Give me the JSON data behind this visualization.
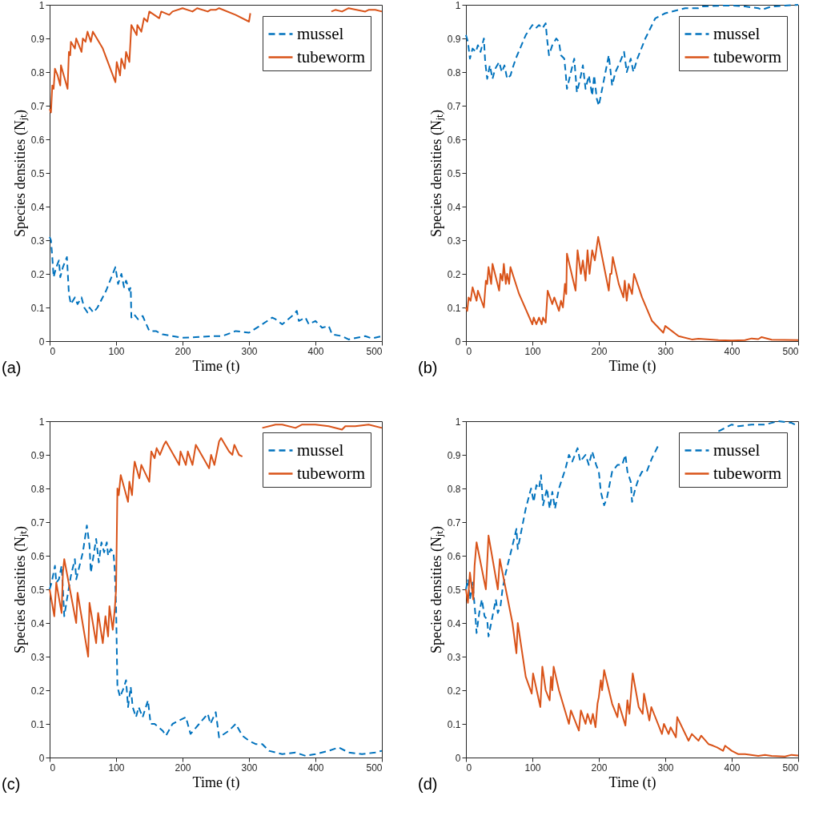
{
  "chart_data": [
    {
      "type": "line",
      "xlabel": "Time (t)",
      "ylabel": "Species densities (Nⱼₜ)",
      "annotations": [
        "(a)"
      ],
      "legend": "top right",
      "xlim": [
        0,
        500
      ],
      "xticks": [
        0,
        100,
        200,
        300,
        400,
        500
      ],
      "ylim": [
        0,
        1
      ],
      "yticks": [
        0,
        0.1,
        0.2,
        0.3,
        0.4,
        0.5,
        0.6,
        0.7,
        0.8,
        0.9,
        1
      ],
      "series": [
        {
          "name": "mussel",
          "color": "#0072bd",
          "line_style": "dashed",
          "x": [
            0,
            2,
            4,
            6,
            10,
            14,
            16,
            20,
            26,
            29,
            32,
            38,
            42,
            48,
            52,
            57,
            60,
            66,
            72,
            85,
            99,
            103,
            108,
            112,
            115,
            120,
            122,
            123,
            127,
            133,
            140,
            150,
            160,
            170,
            185,
            200,
            220,
            245,
            260,
            280,
            300,
            320,
            335,
            340,
            350,
            368,
            372,
            375,
            385,
            390,
            400,
            410,
            420,
            425,
            440,
            450,
            475,
            485,
            500
          ],
          "values": [
            0.31,
            0.3,
            0.25,
            0.19,
            0.22,
            0.24,
            0.19,
            0.22,
            0.25,
            0.14,
            0.11,
            0.13,
            0.11,
            0.13,
            0.1,
            0.085,
            0.1,
            0.085,
            0.1,
            0.15,
            0.22,
            0.17,
            0.2,
            0.16,
            0.18,
            0.15,
            0.16,
            0.07,
            0.08,
            0.065,
            0.075,
            0.03,
            0.03,
            0.02,
            0.015,
            0.01,
            0.012,
            0.015,
            0.015,
            0.03,
            0.025,
            0.05,
            0.07,
            0.065,
            0.05,
            0.08,
            0.09,
            0.06,
            0.07,
            0.05,
            0.06,
            0.04,
            0.045,
            0.02,
            0.015,
            0.005,
            0.015,
            0.008,
            0.015
          ]
        },
        {
          "name": "tubeworm",
          "color": "#d95319",
          "line_style": "solid",
          "x": [
            0,
            2,
            4,
            6,
            8,
            12,
            16,
            17,
            27,
            29,
            31,
            32,
            38,
            40,
            48,
            50,
            54,
            57,
            62,
            65,
            80,
            99,
            101,
            106,
            108,
            113,
            115,
            120,
            123,
            131,
            132,
            138,
            142,
            147,
            150,
            165,
            168,
            180,
            185,
            200,
            215,
            222,
            238,
            242,
            250,
            255,
            280,
            300,
            302,
            360,
            424,
            430,
            440,
            450,
            475,
            480,
            490,
            500
          ],
          "values": [
            0.69,
            0.68,
            0.76,
            0.75,
            0.81,
            0.79,
            0.76,
            0.82,
            0.75,
            0.86,
            0.85,
            0.89,
            0.87,
            0.9,
            0.86,
            0.9,
            0.89,
            0.92,
            0.89,
            0.92,
            0.87,
            0.77,
            0.83,
            0.79,
            0.84,
            0.81,
            0.86,
            0.83,
            0.94,
            0.91,
            0.94,
            0.92,
            0.96,
            0.95,
            0.98,
            0.96,
            0.98,
            0.97,
            0.98,
            0.99,
            0.98,
            0.99,
            0.98,
            0.985,
            0.985,
            0.99,
            0.97,
            0.95,
            0.975,
            null,
            0.98,
            0.985,
            0.98,
            0.99,
            0.98,
            0.985,
            0.985,
            0.98
          ]
        }
      ]
    },
    {
      "type": "line",
      "xlabel": "Time (t)",
      "ylabel": "Species densities (Nⱼₜ)",
      "annotations": [
        "(b)"
      ],
      "legend": "top right",
      "xlim": [
        0,
        500
      ],
      "xticks": [
        0,
        100,
        200,
        300,
        400,
        500
      ],
      "ylim": [
        0,
        1
      ],
      "yticks": [
        0,
        0.1,
        0.2,
        0.3,
        0.4,
        0.5,
        0.6,
        0.7,
        0.8,
        0.9,
        1
      ],
      "series": [
        {
          "name": "mussel",
          "color": "#0072bd",
          "line_style": "dashed",
          "x": [
            0,
            3,
            6,
            10,
            15,
            18,
            22,
            27,
            29,
            32,
            36,
            40,
            44,
            50,
            54,
            58,
            62,
            67,
            70,
            75,
            90,
            100,
            105,
            110,
            115,
            120,
            122,
            125,
            130,
            136,
            140,
            143,
            148,
            150,
            152,
            158,
            163,
            167,
            172,
            176,
            180,
            185,
            190,
            193,
            197,
            200,
            205,
            210,
            215,
            220,
            225,
            232,
            238,
            242,
            248,
            252,
            258,
            270,
            285,
            300,
            330,
            350,
            355,
            380,
            400,
            420,
            440,
            445,
            460,
            500
          ],
          "values": [
            0.91,
            0.89,
            0.84,
            0.87,
            0.86,
            0.88,
            0.86,
            0.9,
            0.83,
            0.78,
            0.82,
            0.78,
            0.81,
            0.83,
            0.8,
            0.82,
            0.78,
            0.79,
            0.81,
            0.84,
            0.91,
            0.94,
            0.93,
            0.94,
            0.93,
            0.945,
            0.9,
            0.85,
            0.88,
            0.9,
            0.89,
            0.85,
            0.84,
            0.8,
            0.75,
            0.8,
            0.84,
            0.74,
            0.78,
            0.82,
            0.75,
            0.79,
            0.73,
            0.79,
            0.72,
            0.7,
            0.75,
            0.8,
            0.85,
            0.76,
            0.8,
            0.83,
            0.86,
            0.8,
            0.84,
            0.8,
            0.84,
            0.9,
            0.96,
            0.975,
            0.99,
            0.99,
            0.995,
            0.997,
            0.998,
            0.995,
            0.99,
            0.985,
            0.995,
            1.0
          ]
        },
        {
          "name": "tubeworm",
          "color": "#d95319",
          "line_style": "solid",
          "x": [
            0,
            2,
            4,
            7,
            10,
            16,
            18,
            27,
            30,
            32,
            34,
            38,
            40,
            50,
            52,
            55,
            57,
            60,
            62,
            65,
            67,
            80,
            100,
            102,
            106,
            110,
            114,
            116,
            120,
            123,
            130,
            133,
            140,
            143,
            146,
            149,
            151,
            152,
            165,
            168,
            173,
            176,
            180,
            183,
            186,
            190,
            194,
            199,
            215,
            217,
            219,
            221,
            230,
            237,
            239,
            242,
            245,
            250,
            253,
            265,
            280,
            297,
            300,
            320,
            340,
            350,
            380,
            400,
            420,
            430,
            440,
            445,
            460,
            500
          ],
          "values": [
            0.1,
            0.09,
            0.13,
            0.12,
            0.16,
            0.12,
            0.15,
            0.1,
            0.18,
            0.17,
            0.22,
            0.17,
            0.23,
            0.15,
            0.2,
            0.18,
            0.23,
            0.17,
            0.2,
            0.17,
            0.22,
            0.14,
            0.05,
            0.07,
            0.05,
            0.07,
            0.05,
            0.07,
            0.055,
            0.15,
            0.11,
            0.13,
            0.09,
            0.12,
            0.1,
            0.17,
            0.14,
            0.26,
            0.15,
            0.27,
            0.2,
            0.24,
            0.18,
            0.27,
            0.2,
            0.27,
            0.24,
            0.31,
            0.15,
            0.2,
            0.2,
            0.25,
            0.17,
            0.13,
            0.18,
            0.12,
            0.17,
            0.14,
            0.2,
            0.13,
            0.06,
            0.025,
            0.045,
            0.015,
            0.005,
            0.007,
            0.003,
            0.002,
            0.003,
            0.008,
            0.006,
            0.012,
            0.004,
            0.003
          ]
        }
      ]
    },
    {
      "type": "line",
      "xlabel": "Time (t)",
      "ylabel": "Species densities (Nⱼₜ)",
      "annotations": [
        "(c)"
      ],
      "legend": "top right",
      "xlim": [
        0,
        500
      ],
      "xticks": [
        0,
        100,
        200,
        300,
        400,
        500
      ],
      "ylim": [
        0,
        1
      ],
      "yticks": [
        0,
        0.1,
        0.2,
        0.3,
        0.4,
        0.5,
        0.6,
        0.7,
        0.8,
        0.9,
        1
      ],
      "series": [
        {
          "name": "mussel",
          "color": "#0072bd",
          "line_style": "dashed",
          "x": [
            0,
            3,
            6,
            8,
            10,
            14,
            18,
            20,
            22,
            26,
            32,
            38,
            40,
            45,
            50,
            56,
            60,
            62,
            66,
            70,
            74,
            78,
            82,
            86,
            88,
            92,
            96,
            98,
            100,
            102,
            106,
            112,
            115,
            118,
            122,
            125,
            130,
            134,
            140,
            148,
            152,
            158,
            170,
            175,
            185,
            195,
            205,
            212,
            225,
            238,
            242,
            250,
            255,
            270,
            280,
            290,
            300,
            310,
            320,
            330,
            350,
            370,
            385,
            400,
            420,
            435,
            450,
            470,
            490,
            500
          ],
          "values": [
            0.5,
            0.52,
            0.55,
            0.57,
            0.52,
            0.53,
            0.57,
            0.5,
            0.42,
            0.47,
            0.54,
            0.59,
            0.53,
            0.57,
            0.61,
            0.69,
            0.63,
            0.55,
            0.6,
            0.65,
            0.58,
            0.64,
            0.61,
            0.64,
            0.6,
            0.62,
            0.61,
            0.56,
            0.45,
            0.21,
            0.18,
            0.21,
            0.23,
            0.15,
            0.21,
            0.15,
            0.12,
            0.15,
            0.12,
            0.17,
            0.1,
            0.1,
            0.08,
            0.065,
            0.1,
            0.11,
            0.12,
            0.07,
            0.1,
            0.13,
            0.1,
            0.135,
            0.06,
            0.08,
            0.1,
            0.065,
            0.05,
            0.04,
            0.04,
            0.02,
            0.01,
            0.015,
            0.005,
            0.01,
            0.02,
            0.03,
            0.015,
            0.01,
            0.015,
            0.02
          ]
        },
        {
          "name": "tubeworm",
          "color": "#d95319",
          "line_style": "solid",
          "x": [
            0,
            7,
            10,
            18,
            20,
            22,
            40,
            42,
            58,
            60,
            70,
            73,
            80,
            84,
            88,
            90,
            95,
            98,
            100,
            102,
            104,
            107,
            118,
            120,
            124,
            126,
            128,
            135,
            138,
            150,
            153,
            158,
            161,
            166,
            170,
            172,
            175,
            195,
            197,
            205,
            208,
            215,
            220,
            240,
            243,
            248,
            255,
            258,
            270,
            275,
            278,
            285,
            290,
            305,
            320,
            340,
            350,
            370,
            380,
            390,
            400,
            420,
            440,
            445,
            460,
            480,
            500
          ],
          "values": [
            0.5,
            0.42,
            0.52,
            0.43,
            0.55,
            0.59,
            0.4,
            0.49,
            0.3,
            0.46,
            0.34,
            0.43,
            0.34,
            0.42,
            0.36,
            0.45,
            0.38,
            0.44,
            0.5,
            0.8,
            0.78,
            0.84,
            0.76,
            0.82,
            0.78,
            0.84,
            0.88,
            0.83,
            0.87,
            0.82,
            0.91,
            0.89,
            0.92,
            0.9,
            0.92,
            0.93,
            0.94,
            0.87,
            0.91,
            0.87,
            0.91,
            0.87,
            0.93,
            0.86,
            0.9,
            0.87,
            0.94,
            0.95,
            0.91,
            0.9,
            0.93,
            0.9,
            0.895,
            null,
            0.98,
            0.99,
            0.99,
            0.98,
            0.99,
            0.99,
            0.99,
            0.985,
            0.975,
            0.985,
            0.985,
            0.99,
            0.98
          ]
        }
      ]
    },
    {
      "type": "line",
      "xlabel": "Time (t)",
      "ylabel": "Species densities (Nⱼₜ)",
      "annotations": [
        "(d)"
      ],
      "legend": "top right",
      "xlim": [
        0,
        500
      ],
      "xticks": [
        0,
        100,
        200,
        300,
        400,
        500
      ],
      "ylim": [
        0,
        1
      ],
      "yticks": [
        0,
        0.1,
        0.2,
        0.3,
        0.4,
        0.5,
        0.6,
        0.7,
        0.8,
        0.9,
        1
      ],
      "series": [
        {
          "name": "mussel",
          "color": "#0072bd",
          "line_style": "dashed",
          "x": [
            0,
            3,
            6,
            10,
            14,
            16,
            20,
            24,
            28,
            32,
            34,
            40,
            45,
            48,
            52,
            55,
            60,
            70,
            76,
            78,
            84,
            90,
            98,
            102,
            106,
            110,
            113,
            116,
            122,
            126,
            130,
            134,
            140,
            150,
            155,
            160,
            168,
            172,
            180,
            185,
            190,
            196,
            200,
            203,
            208,
            212,
            220,
            228,
            235,
            240,
            243,
            248,
            250,
            255,
            260,
            265,
            272,
            280,
            290,
            330,
            380,
            400,
            410,
            430,
            450,
            470,
            490,
            500
          ],
          "values": [
            0.5,
            0.53,
            0.47,
            0.52,
            0.43,
            0.37,
            0.43,
            0.47,
            0.42,
            0.41,
            0.36,
            0.42,
            0.47,
            0.43,
            0.45,
            0.5,
            0.55,
            0.63,
            0.68,
            0.62,
            0.68,
            0.74,
            0.8,
            0.76,
            0.81,
            0.8,
            0.84,
            0.75,
            0.8,
            0.74,
            0.79,
            0.74,
            0.8,
            0.86,
            0.9,
            0.88,
            0.92,
            0.88,
            0.9,
            0.87,
            0.91,
            0.87,
            0.85,
            0.79,
            0.75,
            0.77,
            0.85,
            0.87,
            0.87,
            0.9,
            0.85,
            0.82,
            0.76,
            0.8,
            0.83,
            0.85,
            0.85,
            0.89,
            0.93,
            null,
            0.97,
            0.99,
            0.985,
            0.99,
            0.99,
            1.0,
            0.995,
            0.985
          ]
        },
        {
          "name": "tubeworm",
          "color": "#d95319",
          "line_style": "solid",
          "x": [
            0,
            3,
            6,
            11,
            13,
            16,
            30,
            34,
            48,
            51,
            60,
            70,
            76,
            78,
            90,
            99,
            101,
            112,
            115,
            120,
            126,
            128,
            130,
            132,
            140,
            155,
            158,
            170,
            173,
            180,
            183,
            188,
            191,
            195,
            198,
            200,
            203,
            205,
            208,
            220,
            228,
            230,
            240,
            243,
            246,
            251,
            260,
            266,
            268,
            276,
            279,
            295,
            298,
            305,
            308,
            316,
            318,
            335,
            340,
            350,
            354,
            365,
            372,
            378,
            387,
            390,
            400,
            410,
            420,
            440,
            450,
            460,
            480,
            490,
            500
          ],
          "values": [
            0.5,
            0.46,
            0.55,
            0.47,
            0.57,
            0.64,
            0.5,
            0.66,
            0.5,
            0.59,
            0.5,
            0.4,
            0.31,
            0.4,
            0.24,
            0.19,
            0.25,
            0.15,
            0.27,
            0.2,
            0.17,
            0.24,
            0.2,
            0.27,
            0.2,
            0.1,
            0.14,
            0.08,
            0.14,
            0.1,
            0.13,
            0.1,
            0.13,
            0.09,
            0.16,
            0.18,
            0.23,
            0.2,
            0.26,
            0.16,
            0.12,
            0.16,
            0.095,
            0.17,
            0.13,
            0.25,
            0.15,
            0.13,
            0.19,
            0.11,
            0.15,
            0.07,
            0.1,
            0.07,
            0.09,
            0.06,
            0.12,
            0.05,
            0.07,
            0.05,
            0.065,
            0.04,
            0.035,
            0.03,
            0.02,
            0.035,
            0.02,
            0.01,
            0.01,
            0.005,
            0.008,
            0.005,
            0.003,
            0.008,
            0.006
          ]
        }
      ]
    }
  ]
}
